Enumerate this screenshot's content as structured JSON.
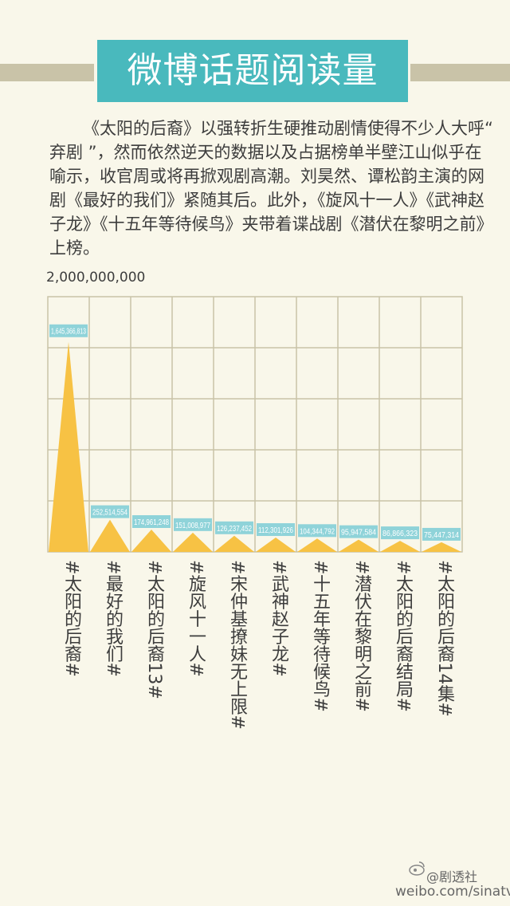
{
  "header": {
    "title": "微博话题阅读量"
  },
  "intro": "《太阳的后裔》以强转折生硬推动剧情使得不少人大呼“ 弃剧 ”，然而依然逆天的数据以及占据榜单半壁江山似乎在喻示，收官周或将再掀观剧高潮。刘昊然、谭松韵主演的网剧《最好的我们》紧随其后。此外，《旋风十一人》《武神赵子龙》《十五年等待候鸟》夹带着谍战剧《潜伏在黎明之前》上榜。",
  "chart_data": {
    "type": "area",
    "ymax_label": "2,000,000,000",
    "ylim": [
      0,
      2000000000
    ],
    "grid": true,
    "categories": [
      "#太阳的后裔#",
      "#最好的我们#",
      "#太阳的后裔13#",
      "#旋风十一人#",
      "#宋仲基撩妹无上限#",
      "#武神赵子龙#",
      "#十五年等待候鸟#",
      "#潜伏在黎明之前#",
      "#太阳的后裔结局#",
      "#太阳的后裔14集#"
    ],
    "values": [
      1645366813,
      252514554,
      174961248,
      151008977,
      126237452,
      112301926,
      104344792,
      95947584,
      86866323,
      75447314
    ],
    "value_labels": [
      "1,645,366,813",
      "252,514,554",
      "174,961,248",
      "151,008,977",
      "126,237,452",
      "112,301,926",
      "104,344,792",
      "95,947,584",
      "86,866,323",
      "75,447,314"
    ],
    "colors": {
      "fill": "#f7c244",
      "label_bg": "#8fd3d9",
      "label_text": "#ffffff",
      "grid": "#c9c3a8"
    }
  },
  "watermark": {
    "handle": "@剧透社",
    "url": "weibo.com/sinatv"
  }
}
